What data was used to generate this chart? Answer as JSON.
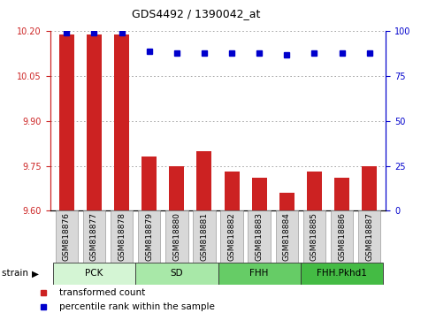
{
  "title": "GDS4492 / 1390042_at",
  "samples": [
    "GSM818876",
    "GSM818877",
    "GSM818878",
    "GSM818879",
    "GSM818880",
    "GSM818881",
    "GSM818882",
    "GSM818883",
    "GSM818884",
    "GSM818885",
    "GSM818886",
    "GSM818887"
  ],
  "transformed_count": [
    10.19,
    10.19,
    10.19,
    9.78,
    9.75,
    9.8,
    9.73,
    9.71,
    9.66,
    9.73,
    9.71,
    9.75
  ],
  "percentile_rank": [
    99,
    99,
    99,
    89,
    88,
    88,
    88,
    88,
    87,
    88,
    88,
    88
  ],
  "ylim_left": [
    9.6,
    10.2
  ],
  "ylim_right": [
    0,
    100
  ],
  "yticks_left": [
    9.6,
    9.75,
    9.9,
    10.05,
    10.2
  ],
  "yticks_right": [
    0,
    25,
    50,
    75,
    100
  ],
  "groups": [
    {
      "label": "PCK",
      "start": 0,
      "end": 3,
      "color": "#d4f5d4"
    },
    {
      "label": "SD",
      "start": 3,
      "end": 6,
      "color": "#a8e8a8"
    },
    {
      "label": "FHH",
      "start": 6,
      "end": 9,
      "color": "#66cc66"
    },
    {
      "label": "FHH.Pkhd1",
      "start": 9,
      "end": 12,
      "color": "#44bb44"
    }
  ],
  "bar_color": "#cc2222",
  "dot_color": "#0000cc",
  "left_axis_color": "#cc2222",
  "right_axis_color": "#0000cc",
  "xtick_bg_color": "#d8d8d8",
  "legend_items": [
    {
      "label": "transformed count",
      "color": "#cc2222"
    },
    {
      "label": "percentile rank within the sample",
      "color": "#0000cc"
    }
  ]
}
